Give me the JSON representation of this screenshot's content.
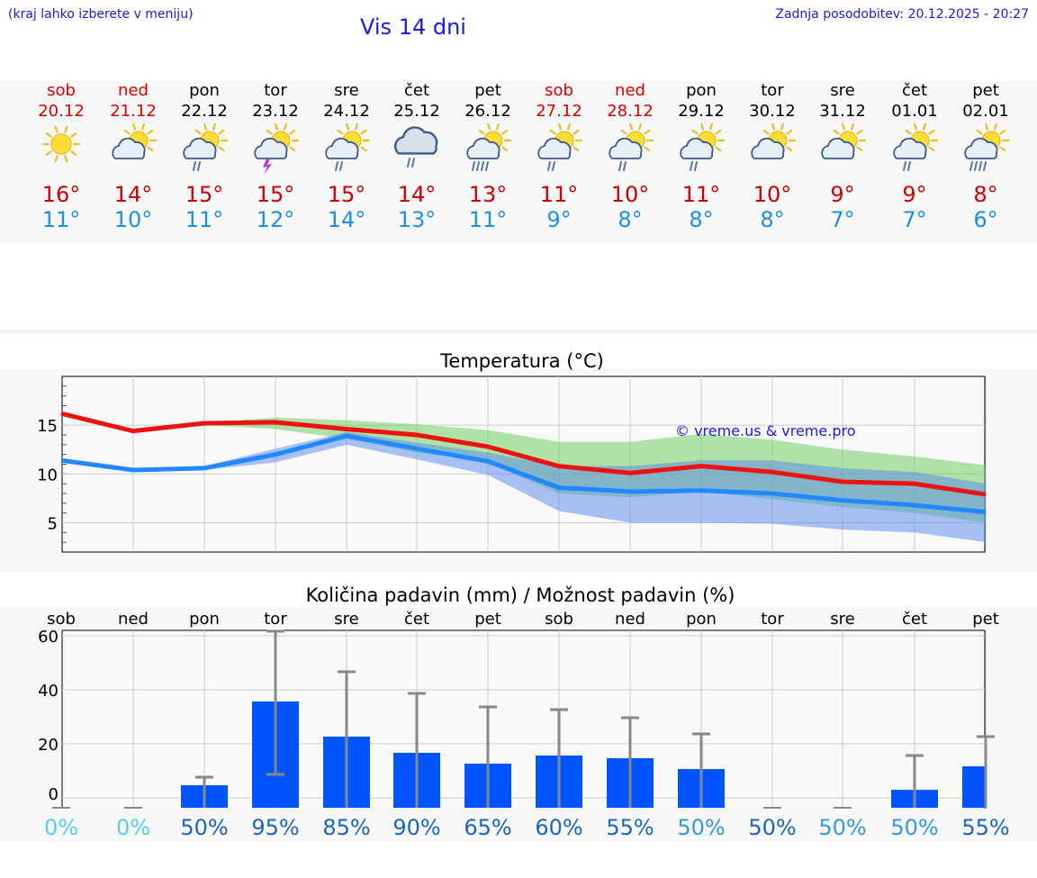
{
  "header": {
    "hint": "(kraj lahko izberete v meniju)",
    "title": "Vis 14 dni",
    "updated": "Zadnja posodobitev: 20.12.2025 - 20:27"
  },
  "days": [
    {
      "name": "sob",
      "date": "20.12",
      "weekend": true,
      "icon": "sun-icon",
      "tmax": "16°",
      "tmin": "11°"
    },
    {
      "name": "ned",
      "date": "21.12",
      "weekend": true,
      "icon": "sun-cloud-icon",
      "tmax": "14°",
      "tmin": "10°"
    },
    {
      "name": "pon",
      "date": "22.12",
      "weekend": false,
      "icon": "sun-cloud-rain-icon",
      "tmax": "15°",
      "tmin": "11°"
    },
    {
      "name": "tor",
      "date": "23.12",
      "weekend": false,
      "icon": "sun-cloud-thunder-icon",
      "tmax": "15°",
      "tmin": "12°"
    },
    {
      "name": "sre",
      "date": "24.12",
      "weekend": false,
      "icon": "sun-cloud-rain-icon",
      "tmax": "15°",
      "tmin": "14°"
    },
    {
      "name": "čet",
      "date": "25.12",
      "weekend": false,
      "icon": "cloud-rain-icon",
      "tmax": "14°",
      "tmin": "13°"
    },
    {
      "name": "pet",
      "date": "26.12",
      "weekend": false,
      "icon": "sun-cloud-heavy-rain-icon",
      "tmax": "13°",
      "tmin": "11°"
    },
    {
      "name": "sob",
      "date": "27.12",
      "weekend": true,
      "icon": "sun-cloud-rain-icon",
      "tmax": "11°",
      "tmin": "9°"
    },
    {
      "name": "ned",
      "date": "28.12",
      "weekend": true,
      "icon": "sun-cloud-rain-icon",
      "tmax": "10°",
      "tmin": "8°"
    },
    {
      "name": "pon",
      "date": "29.12",
      "weekend": false,
      "icon": "sun-cloud-rain-icon",
      "tmax": "11°",
      "tmin": "8°"
    },
    {
      "name": "tor",
      "date": "30.12",
      "weekend": false,
      "icon": "sun-cloud-icon",
      "tmax": "10°",
      "tmin": "8°"
    },
    {
      "name": "sre",
      "date": "31.12",
      "weekend": false,
      "icon": "sun-cloud-icon",
      "tmax": "9°",
      "tmin": "7°"
    },
    {
      "name": "čet",
      "date": "01.01",
      "weekend": false,
      "icon": "sun-cloud-rain-icon",
      "tmax": "9°",
      "tmin": "7°"
    },
    {
      "name": "pet",
      "date": "02.01",
      "weekend": false,
      "icon": "sun-cloud-heavy-rain-icon",
      "tmax": "8°",
      "tmin": "6°"
    }
  ],
  "colors": {
    "title": "#1a1ae6",
    "tmax": "#cc0000",
    "tmin": "#1e8fe6",
    "max_line": "#ee1111",
    "min_line": "#2288ff",
    "max_band": "#66cc55",
    "min_band": "#5588ee",
    "bar": "#0055ff",
    "prob_light": "#55ccee",
    "prob_mid": "#3399dd",
    "prob_dark": "#1a66bb"
  },
  "chart_data": [
    {
      "type": "line",
      "title": "Temperatura (°C)",
      "watermark": "© vreme.us & vreme.pro",
      "ylim": [
        2,
        20
      ],
      "yticks": [
        5,
        10,
        15
      ],
      "x": [
        "20.12",
        "21.12",
        "22.12",
        "23.12",
        "24.12",
        "25.12",
        "26.12",
        "27.12",
        "28.12",
        "29.12",
        "30.12",
        "31.12",
        "01.01",
        "02.01"
      ],
      "series": [
        {
          "name": "max",
          "values": [
            16.2,
            14.4,
            15.2,
            15.3,
            14.6,
            14.0,
            12.8,
            10.8,
            10.1,
            10.8,
            10.2,
            9.2,
            9.0,
            7.9
          ]
        },
        {
          "name": "min",
          "values": [
            11.4,
            10.4,
            10.6,
            12.0,
            13.9,
            12.6,
            11.3,
            8.6,
            8.2,
            8.3,
            8.0,
            7.3,
            6.8,
            6.1
          ]
        },
        {
          "name": "max_range_high",
          "values": [
            16.2,
            14.4,
            15.2,
            15.8,
            15.5,
            15.1,
            14.5,
            13.3,
            13.3,
            14.1,
            13.5,
            12.5,
            11.8,
            10.9
          ]
        },
        {
          "name": "max_range_low",
          "values": [
            16.2,
            14.4,
            15.0,
            14.6,
            13.6,
            12.2,
            11.2,
            8.0,
            7.6,
            8.2,
            7.4,
            6.6,
            6.0,
            5.0
          ]
        },
        {
          "name": "min_range_high",
          "values": [
            11.4,
            10.6,
            10.8,
            12.6,
            14.3,
            13.2,
            12.2,
            10.8,
            10.8,
            11.4,
            11.4,
            10.6,
            10.2,
            9.0
          ]
        },
        {
          "name": "min_range_low",
          "values": [
            11.4,
            10.2,
            10.4,
            11.2,
            13.0,
            11.5,
            9.9,
            6.2,
            5.0,
            5.0,
            4.9,
            4.3,
            4.0,
            3.0
          ]
        }
      ]
    },
    {
      "type": "bar",
      "title": "Količina padavin (mm) / Možnost padavin (%)",
      "ylim": [
        -4,
        62
      ],
      "yticks": [
        0,
        20,
        40,
        60
      ],
      "categories": [
        "sob",
        "ned",
        "pon",
        "tor",
        "sre",
        "čet",
        "pet",
        "sob",
        "ned",
        "pon",
        "tor",
        "sre",
        "čet",
        "pet"
      ],
      "values": [
        0,
        0,
        2,
        33,
        20,
        14,
        10,
        13,
        12,
        8,
        0,
        0,
        0.3,
        9
      ],
      "error_high": [
        0,
        0,
        5,
        59,
        44,
        36,
        31,
        30,
        27,
        21,
        0,
        0,
        13,
        20
      ],
      "error_low": [
        0,
        0,
        0,
        6,
        0,
        0,
        0,
        0,
        0,
        0,
        0,
        0,
        0,
        0
      ],
      "probability": [
        "0%",
        "0%",
        "50%",
        "95%",
        "85%",
        "90%",
        "65%",
        "60%",
        "55%",
        "50%",
        "50%",
        "50%",
        "50%",
        "55%"
      ],
      "probability_shade": [
        "light",
        "light",
        "dark",
        "dark",
        "dark",
        "dark",
        "dark",
        "dark",
        "dark",
        "mid",
        "dark",
        "mid",
        "mid",
        "dark"
      ]
    }
  ]
}
